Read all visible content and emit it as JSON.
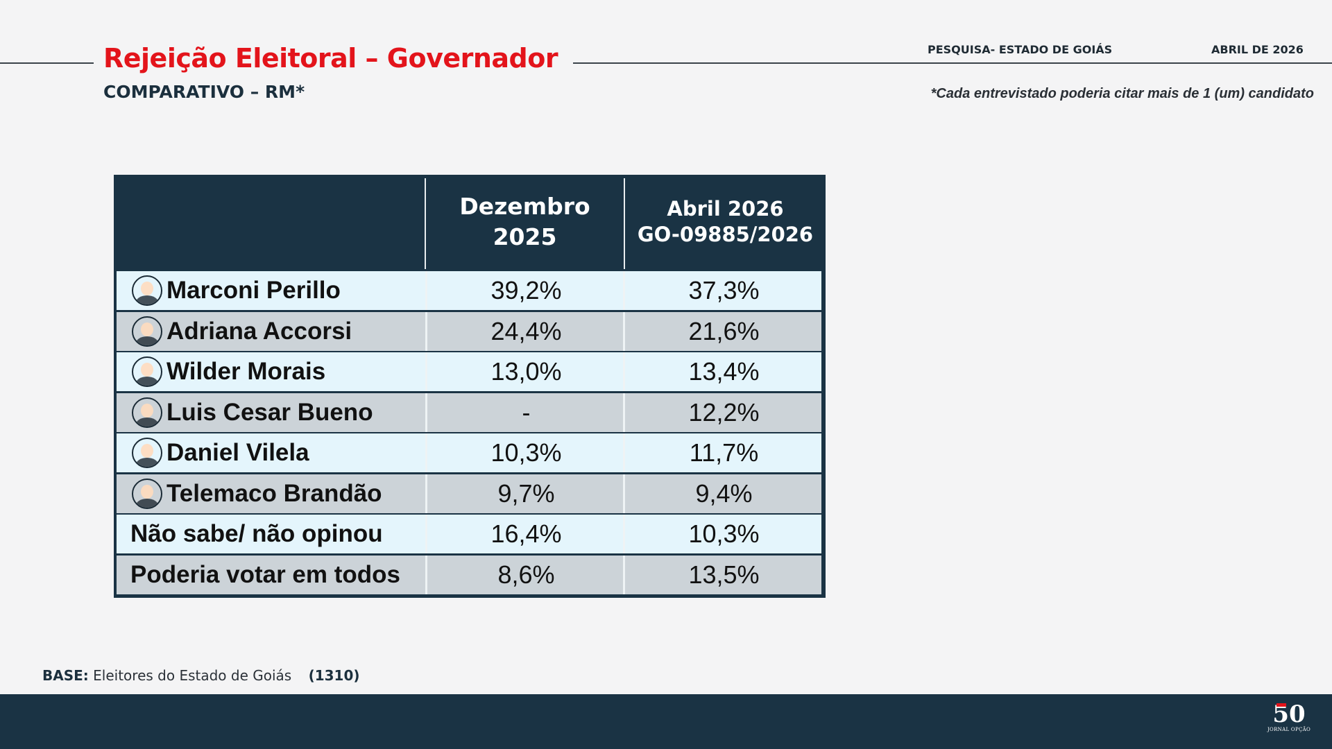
{
  "header": {
    "title": "Rejeição Eleitoral – Governador",
    "subtitle": "COMPARATIVO – RM*",
    "survey_label": "PESQUISA- ESTADO DE GOIÁS",
    "date_label": "ABRIL DE 2026",
    "note": "*Cada entrevistado poderia citar mais de 1 (um) candidato"
  },
  "table": {
    "columns": [
      {
        "line1": "Dezembro",
        "line2": "2025"
      },
      {
        "line1": "Abril 2026",
        "line2": "GO-09885/2026"
      }
    ],
    "rows": [
      {
        "label": "Marconi Perillo",
        "has_photo": true,
        "dez_2025": "39,2%",
        "abr_2026": "37,3%"
      },
      {
        "label": "Adriana Accorsi",
        "has_photo": true,
        "dez_2025": "24,4%",
        "abr_2026": "21,6%"
      },
      {
        "label": "Wilder Morais",
        "has_photo": true,
        "dez_2025": "13,0%",
        "abr_2026": "13,4%"
      },
      {
        "label": "Luis Cesar Bueno",
        "has_photo": true,
        "dez_2025": "-",
        "abr_2026": "12,2%"
      },
      {
        "label": "Daniel Vilela",
        "has_photo": true,
        "dez_2025": "10,3%",
        "abr_2026": "11,7%"
      },
      {
        "label": "Telemaco Brandão",
        "has_photo": true,
        "dez_2025": "9,7%",
        "abr_2026": "9,4%"
      },
      {
        "label": "Não sabe/ não opinou",
        "has_photo": false,
        "dez_2025": "16,4%",
        "abr_2026": "10,3%"
      },
      {
        "label": "Poderia votar em todos",
        "has_photo": false,
        "dez_2025": "8,6%",
        "abr_2026": "13,5%"
      }
    ]
  },
  "footer": {
    "base_label": "BASE:",
    "base_text": "Eleitores do Estado de Goiás",
    "base_n": "(1310)",
    "logo_number": "50",
    "logo_brand": "JORNAL OPÇÃO"
  },
  "colors": {
    "title_red": "#e3141b",
    "navy": "#1a3344",
    "row_light": "#e4f5fc",
    "row_dark": "#ccd3d8"
  }
}
